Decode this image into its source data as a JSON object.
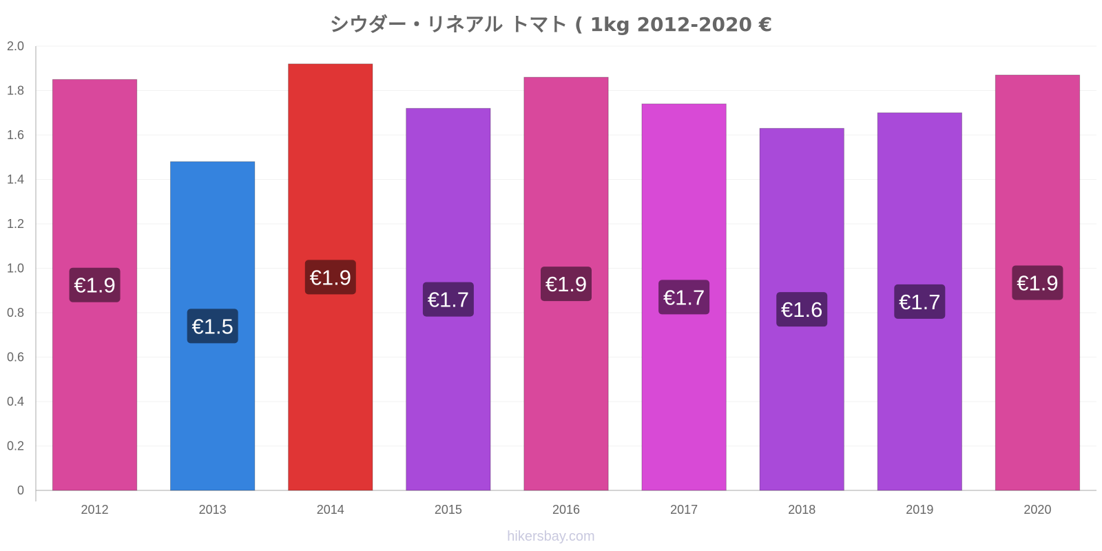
{
  "chart_data": {
    "type": "bar",
    "title": "シウダー・リネアル トマト ( 1kg 2012-2020 €",
    "xlabel": "",
    "ylabel": "",
    "categories": [
      "2012",
      "2013",
      "2014",
      "2015",
      "2016",
      "2017",
      "2018",
      "2019",
      "2020"
    ],
    "values": [
      1.85,
      1.48,
      1.92,
      1.72,
      1.86,
      1.74,
      1.63,
      1.7,
      1.87
    ],
    "data_labels": [
      "€1.9",
      "€1.5",
      "€1.9",
      "€1.7",
      "€1.9",
      "€1.7",
      "€1.6",
      "€1.7",
      "€1.9"
    ],
    "bar_colors": [
      "#d9489c",
      "#3583de",
      "#e03535",
      "#a94ad9",
      "#d9489c",
      "#d84ad6",
      "#a94ad9",
      "#a94ad9",
      "#d9489c"
    ],
    "label_bg_colors": [
      "#6f2352",
      "#1c3f6c",
      "#731c1c",
      "#55246f",
      "#6f2352",
      "#6d236b",
      "#55246f",
      "#55246f",
      "#6f2352"
    ],
    "ylim": [
      0,
      2.0
    ],
    "yticks": [
      0,
      0.2,
      0.4,
      0.6,
      0.8,
      1.0,
      1.2,
      1.4,
      1.6,
      1.8,
      2.0
    ],
    "ytick_labels": [
      "0",
      "0.2",
      "0.4",
      "0.6",
      "0.8",
      "1.0",
      "1.2",
      "1.4",
      "1.6",
      "1.8",
      "2.0"
    ],
    "grid": true,
    "legend": "none"
  },
  "watermark": "hikersbay.com"
}
